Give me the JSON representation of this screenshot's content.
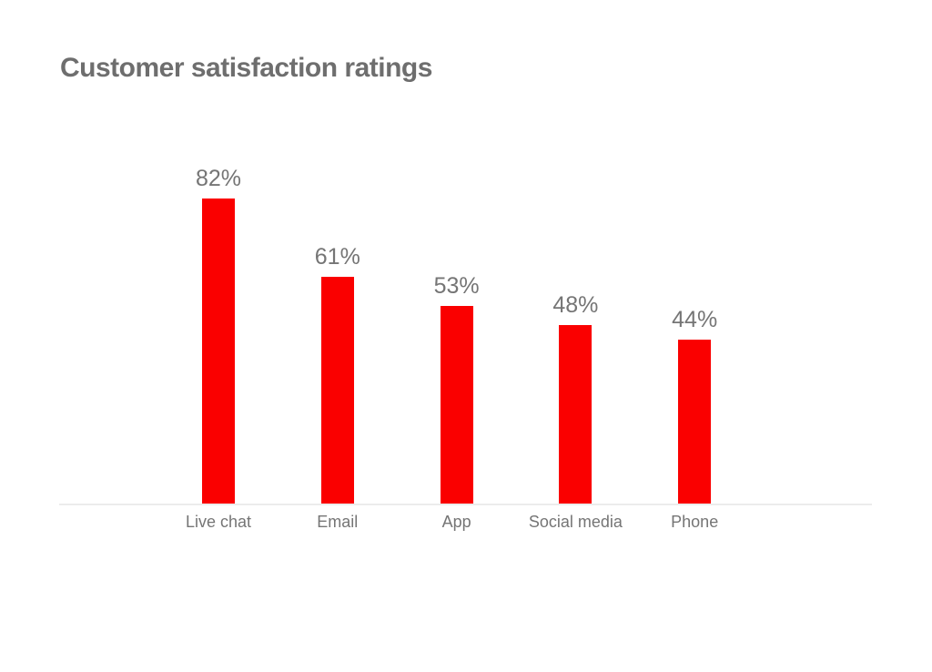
{
  "page": {
    "title": "Customer satisfaction ratings"
  },
  "chart_data": {
    "type": "bar",
    "title": "Customer satisfaction ratings",
    "categories": [
      "Live chat",
      "Email",
      "App",
      "Social media",
      "Phone"
    ],
    "values": [
      82,
      61,
      53,
      48,
      44
    ],
    "value_labels": [
      "82%",
      "61%",
      "53%",
      "48%",
      "44%"
    ],
    "unit": "%",
    "xlabel": "",
    "ylabel": "",
    "ylim": [
      0,
      100
    ],
    "grid": false,
    "legend": "none",
    "colors": {
      "bar": "#FA0000",
      "value_label": "#757575",
      "category_label": "#757575",
      "title": "#6E6E6E",
      "baseline": "#ECECEC",
      "background": "#FFFFFF"
    }
  }
}
